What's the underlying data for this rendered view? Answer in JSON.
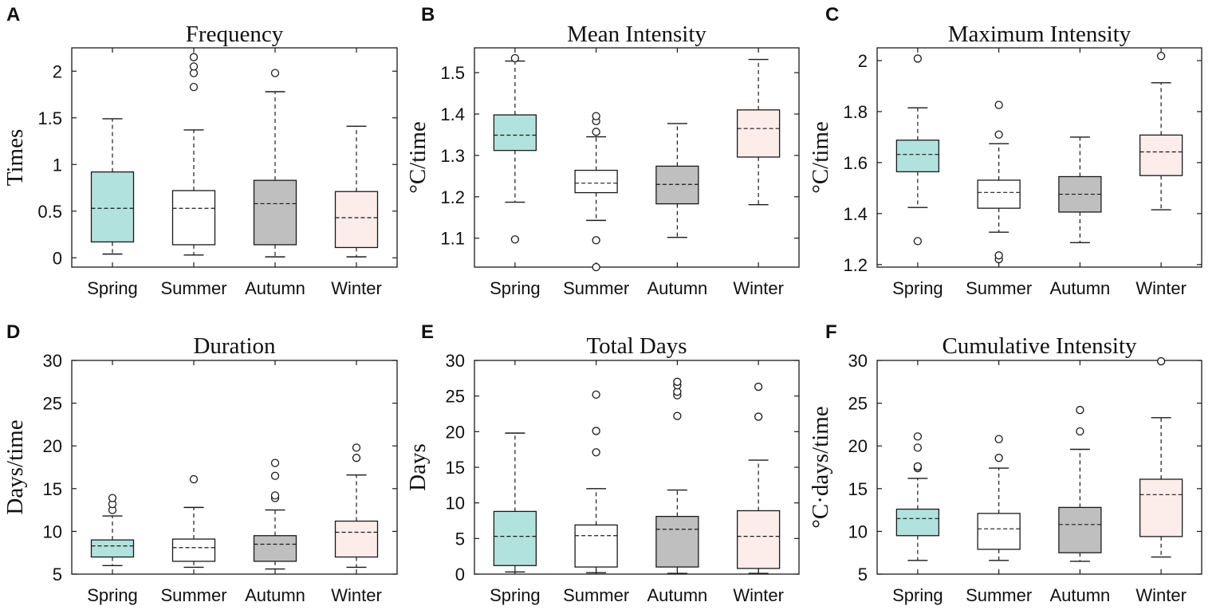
{
  "figure_letters": [
    "A",
    "B",
    "C",
    "D",
    "E",
    "F"
  ],
  "colors": {
    "Spring": "#b2e2dd",
    "Summer": "#ffffff",
    "Autumn": "#bfbfbf",
    "Winter": "#fcecea",
    "stroke": "#1a1a1a"
  },
  "chart_data": [
    {
      "type": "box",
      "letter": "A",
      "title": "Frequency",
      "ylabel": "Times",
      "ylim": [
        -0.1,
        2.25
      ],
      "yticks": [
        0,
        0.5,
        1,
        1.5,
        2
      ],
      "ytick_labels": [
        "0",
        "0.5",
        "1",
        "1.5",
        "2"
      ],
      "categories": [
        "Spring",
        "Summer",
        "Autumn",
        "Winter"
      ],
      "boxes": [
        {
          "q1": 0.17,
          "median": 0.53,
          "q3": 0.92,
          "whisker_low": 0.04,
          "whisker_high": 1.49,
          "outliers": []
        },
        {
          "q1": 0.14,
          "median": 0.53,
          "q3": 0.72,
          "whisker_low": 0.03,
          "whisker_high": 1.37,
          "outliers": [
            1.83,
            1.98,
            2.05,
            2.15
          ]
        },
        {
          "q1": 0.14,
          "median": 0.58,
          "q3": 0.83,
          "whisker_low": 0.01,
          "whisker_high": 1.78,
          "outliers": [
            1.98
          ]
        },
        {
          "q1": 0.11,
          "median": 0.43,
          "q3": 0.71,
          "whisker_low": 0.01,
          "whisker_high": 1.41,
          "outliers": []
        }
      ]
    },
    {
      "type": "box",
      "letter": "B",
      "title": "Mean Intensity",
      "ylabel": "°C/time",
      "ylim": [
        1.03,
        1.56
      ],
      "yticks": [
        1.1,
        1.2,
        1.3,
        1.4,
        1.5
      ],
      "ytick_labels": [
        "1.1",
        "1.2",
        "1.3",
        "1.4",
        "1.5"
      ],
      "categories": [
        "Spring",
        "Summer",
        "Autumn",
        "Winter"
      ],
      "boxes": [
        {
          "q1": 1.312,
          "median": 1.349,
          "q3": 1.398,
          "whisker_low": 1.187,
          "whisker_high": 1.528,
          "outliers": [
            1.097,
            1.535
          ]
        },
        {
          "q1": 1.21,
          "median": 1.233,
          "q3": 1.264,
          "whisker_low": 1.143,
          "whisker_high": 1.345,
          "outliers": [
            1.03,
            1.095,
            1.357,
            1.383,
            1.395
          ]
        },
        {
          "q1": 1.183,
          "median": 1.23,
          "q3": 1.274,
          "whisker_low": 1.102,
          "whisker_high": 1.377,
          "outliers": []
        },
        {
          "q1": 1.296,
          "median": 1.365,
          "q3": 1.41,
          "whisker_low": 1.181,
          "whisker_high": 1.532,
          "outliers": []
        }
      ]
    },
    {
      "type": "box",
      "letter": "C",
      "title": "Maximum Intensity",
      "ylabel": "°C/time",
      "ylim": [
        1.19,
        2.05
      ],
      "yticks": [
        1.2,
        1.4,
        1.6,
        1.8,
        2
      ],
      "ytick_labels": [
        "1.2",
        "1.4",
        "1.6",
        "1.8",
        "2"
      ],
      "categories": [
        "Spring",
        "Summer",
        "Autumn",
        "Winter"
      ],
      "boxes": [
        {
          "q1": 1.564,
          "median": 1.632,
          "q3": 1.688,
          "whisker_low": 1.424,
          "whisker_high": 1.815,
          "outliers": [
            1.292,
            2.008
          ]
        },
        {
          "q1": 1.421,
          "median": 1.483,
          "q3": 1.531,
          "whisker_low": 1.327,
          "whisker_high": 1.674,
          "outliers": [
            1.221,
            1.236,
            1.71,
            1.826
          ]
        },
        {
          "q1": 1.406,
          "median": 1.476,
          "q3": 1.545,
          "whisker_low": 1.286,
          "whisker_high": 1.7,
          "outliers": []
        },
        {
          "q1": 1.549,
          "median": 1.642,
          "q3": 1.708,
          "whisker_low": 1.415,
          "whisker_high": 1.913,
          "outliers": [
            2.018
          ]
        }
      ]
    },
    {
      "type": "box",
      "letter": "D",
      "title": "Duration",
      "ylabel": "Days/time",
      "ylim": [
        5,
        30
      ],
      "yticks": [
        5,
        10,
        15,
        20,
        25,
        30
      ],
      "ytick_labels": [
        "5",
        "10",
        "15",
        "20",
        "25",
        "30"
      ],
      "categories": [
        "Spring",
        "Summer",
        "Autumn",
        "Winter"
      ],
      "boxes": [
        {
          "q1": 7.0,
          "median": 8.3,
          "q3": 9.0,
          "whisker_low": 6.0,
          "whisker_high": 11.8,
          "outliers": [
            12.5,
            13.2,
            13.9
          ]
        },
        {
          "q1": 6.5,
          "median": 8.1,
          "q3": 9.1,
          "whisker_low": 5.8,
          "whisker_high": 12.8,
          "outliers": [
            16.1
          ]
        },
        {
          "q1": 6.5,
          "median": 8.5,
          "q3": 9.5,
          "whisker_low": 5.6,
          "whisker_high": 12.5,
          "outliers": [
            13.9,
            14.2,
            16.5,
            18.0
          ]
        },
        {
          "q1": 7.0,
          "median": 9.9,
          "q3": 11.2,
          "whisker_low": 5.8,
          "whisker_high": 16.6,
          "outliers": [
            18.6,
            19.8
          ]
        }
      ]
    },
    {
      "type": "box",
      "letter": "E",
      "title": "Total Days",
      "ylabel": "Days",
      "ylim": [
        0,
        30
      ],
      "yticks": [
        0,
        5,
        10,
        15,
        20,
        25,
        30
      ],
      "ytick_labels": [
        "0",
        "5",
        "10",
        "15",
        "20",
        "25",
        "30"
      ],
      "categories": [
        "Spring",
        "Summer",
        "Autumn",
        "Winter"
      ],
      "boxes": [
        {
          "q1": 1.2,
          "median": 5.3,
          "q3": 8.8,
          "whisker_low": 0.3,
          "whisker_high": 19.8,
          "outliers": []
        },
        {
          "q1": 1.0,
          "median": 5.4,
          "q3": 6.9,
          "whisker_low": 0.2,
          "whisker_high": 12.0,
          "outliers": [
            17.1,
            20.1,
            25.2
          ]
        },
        {
          "q1": 1.0,
          "median": 6.3,
          "q3": 8.1,
          "whisker_low": 0.1,
          "whisker_high": 11.8,
          "outliers": [
            22.2,
            25.1,
            25.6,
            26.5,
            27.0
          ]
        },
        {
          "q1": 0.8,
          "median": 5.3,
          "q3": 8.9,
          "whisker_low": 0.1,
          "whisker_high": 16.0,
          "outliers": [
            22.1,
            26.3
          ]
        }
      ]
    },
    {
      "type": "box",
      "letter": "F",
      "title": "Cumulative Intensity",
      "ylabel": "°C·days/time",
      "ylim": [
        5,
        30
      ],
      "yticks": [
        5,
        10,
        15,
        20,
        25,
        30
      ],
      "ytick_labels": [
        "5",
        "10",
        "15",
        "20",
        "25",
        "30"
      ],
      "categories": [
        "Spring",
        "Summer",
        "Autumn",
        "Winter"
      ],
      "boxes": [
        {
          "q1": 9.5,
          "median": 11.5,
          "q3": 12.6,
          "whisker_low": 6.6,
          "whisker_high": 16.2,
          "outliers": [
            17.4,
            17.6,
            19.8,
            21.1
          ]
        },
        {
          "q1": 7.9,
          "median": 10.3,
          "q3": 12.1,
          "whisker_low": 6.6,
          "whisker_high": 17.4,
          "outliers": [
            18.6,
            20.8
          ]
        },
        {
          "q1": 7.5,
          "median": 10.8,
          "q3": 12.8,
          "whisker_low": 6.5,
          "whisker_high": 19.6,
          "outliers": [
            21.7,
            24.2
          ]
        },
        {
          "q1": 9.4,
          "median": 14.3,
          "q3": 16.1,
          "whisker_low": 7.0,
          "whisker_high": 23.3,
          "outliers": [
            29.9
          ]
        }
      ]
    }
  ]
}
